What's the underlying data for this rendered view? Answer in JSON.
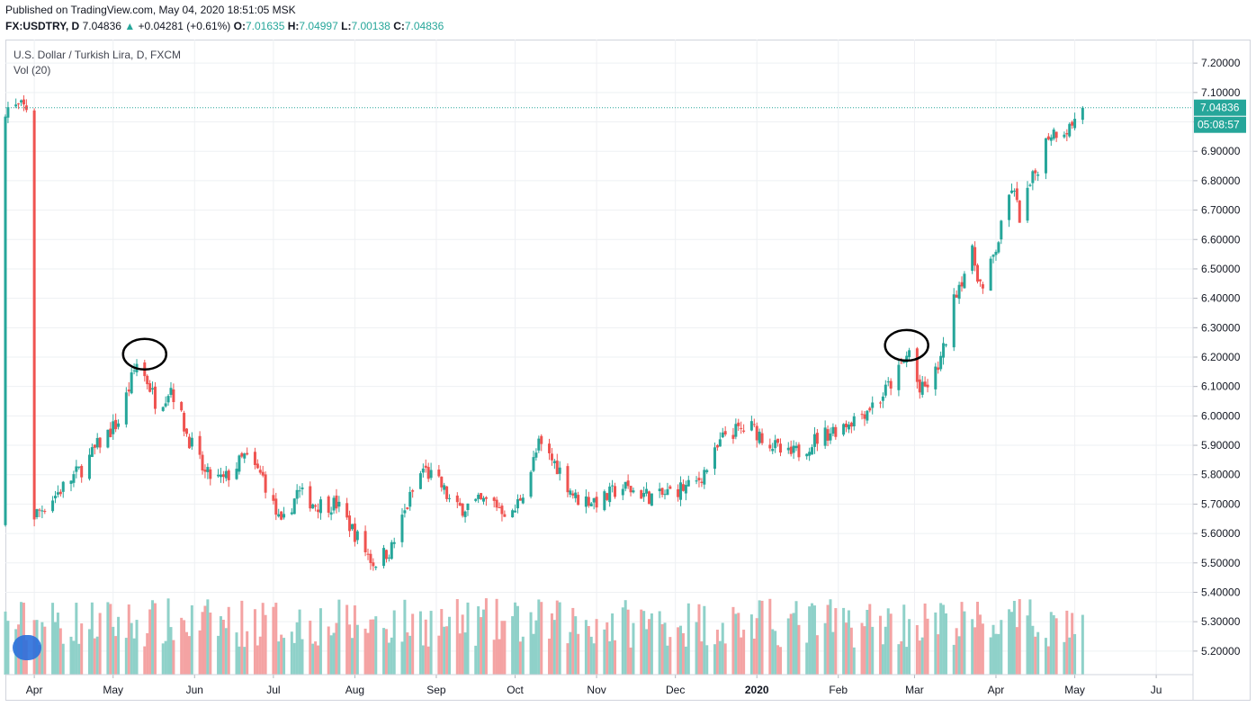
{
  "header": {
    "published": "Published on TradingView.com, May 04, 2020 18:51:05 MSK",
    "symbol": "FX:USDTRY, D",
    "last": "7.04836",
    "change": "+0.04281 (+0.61%)",
    "open_label": "O:",
    "open": "7.01635",
    "high_label": "H:",
    "high": "7.04997",
    "low_label": "L:",
    "low": "7.00138",
    "close_label": "C:",
    "close": "7.04836"
  },
  "legend": {
    "title": "U.S. Dollar / Turkish Lira, D, FXCM",
    "volume": "Vol (20)"
  },
  "price_badge": {
    "value": "7.04836",
    "countdown": "05:08:57"
  },
  "colors": {
    "up": "#26a69a",
    "down": "#ef5350",
    "up_vol": "#8fd1c9",
    "down_vol": "#f4a3a3",
    "grid": "#eef0f3"
  },
  "chart_data": {
    "type": "candlestick",
    "title": "U.S. Dollar / Turkish Lira, D, FXCM",
    "ylim": [
      5.12,
      7.28
    ],
    "y_ticks": [
      "7.20000",
      "7.10000",
      "7.00000",
      "6.90000",
      "6.80000",
      "6.70000",
      "6.60000",
      "6.50000",
      "6.40000",
      "6.30000",
      "6.20000",
      "6.10000",
      "6.00000",
      "5.90000",
      "5.80000",
      "5.70000",
      "5.60000",
      "5.50000",
      "5.40000",
      "5.30000",
      "5.20000"
    ],
    "x_ticks": [
      "Apr",
      "May",
      "Jun",
      "Jul",
      "Aug",
      "Sep",
      "Oct",
      "Nov",
      "Dec",
      "2020",
      "Feb",
      "Mar",
      "Apr",
      "May",
      "Ju"
    ],
    "close_path": [
      [
        "2019-04-01",
        5.66
      ],
      [
        "2019-04-10",
        5.74
      ],
      [
        "2019-04-20",
        5.83
      ],
      [
        "2019-04-26",
        5.91
      ],
      [
        "2019-05-03",
        5.98
      ],
      [
        "2019-05-10",
        6.18
      ],
      [
        "2019-05-14",
        6.12
      ],
      [
        "2019-05-18",
        6.03
      ],
      [
        "2019-05-23",
        6.1
      ],
      [
        "2019-05-29",
        5.94
      ],
      [
        "2019-06-05",
        5.8
      ],
      [
        "2019-06-12",
        5.78
      ],
      [
        "2019-06-20",
        5.86
      ],
      [
        "2019-06-27",
        5.79
      ],
      [
        "2019-07-04",
        5.62
      ],
      [
        "2019-07-10",
        5.74
      ],
      [
        "2019-07-17",
        5.7
      ],
      [
        "2019-07-25",
        5.7
      ],
      [
        "2019-08-01",
        5.6
      ],
      [
        "2019-08-08",
        5.5
      ],
      [
        "2019-08-15",
        5.55
      ],
      [
        "2019-08-22",
        5.72
      ],
      [
        "2019-08-27",
        5.82
      ],
      [
        "2019-09-03",
        5.76
      ],
      [
        "2019-09-08",
        5.68
      ],
      [
        "2019-09-15",
        5.7
      ],
      [
        "2019-09-22",
        5.71
      ],
      [
        "2019-09-30",
        5.66
      ],
      [
        "2019-10-06",
        5.79
      ],
      [
        "2019-10-10",
        5.9
      ],
      [
        "2019-10-17",
        5.83
      ],
      [
        "2019-10-24",
        5.72
      ],
      [
        "2019-11-03",
        5.71
      ],
      [
        "2019-11-10",
        5.76
      ],
      [
        "2019-11-17",
        5.74
      ],
      [
        "2019-11-24",
        5.72
      ],
      [
        "2019-12-01",
        5.75
      ],
      [
        "2019-12-08",
        5.76
      ],
      [
        "2019-12-15",
        5.85
      ],
      [
        "2019-12-20",
        5.94
      ],
      [
        "2019-12-30",
        5.96
      ],
      [
        "2020-01-06",
        5.91
      ],
      [
        "2020-01-12",
        5.86
      ],
      [
        "2020-01-17",
        5.88
      ],
      [
        "2020-01-25",
        5.93
      ],
      [
        "2020-02-03",
        5.97
      ],
      [
        "2020-02-10",
        6.01
      ],
      [
        "2020-02-17",
        6.06
      ],
      [
        "2020-02-24",
        6.15
      ],
      [
        "2020-02-28",
        6.22
      ],
      [
        "2020-03-03",
        6.08
      ],
      [
        "2020-03-08",
        6.12
      ],
      [
        "2020-03-12",
        6.22
      ],
      [
        "2020-03-17",
        6.43
      ],
      [
        "2020-03-23",
        6.55
      ],
      [
        "2020-03-27",
        6.42
      ],
      [
        "2020-04-02",
        6.6
      ],
      [
        "2020-04-07",
        6.78
      ],
      [
        "2020-04-10",
        6.68
      ],
      [
        "2020-04-14",
        6.78
      ],
      [
        "2020-04-17",
        6.85
      ],
      [
        "2020-04-21",
        6.96
      ],
      [
        "2020-04-24",
        6.97
      ],
      [
        "2020-04-29",
        6.98
      ],
      [
        "2020-05-04",
        7.048
      ]
    ],
    "last_price": 7.04836,
    "volume_label": "Vol (20)",
    "annotations": [
      {
        "type": "circle",
        "date": "2019-05-13",
        "price": 6.21
      },
      {
        "type": "circle",
        "date": "2020-02-27",
        "price": 6.24
      }
    ],
    "grid": true
  }
}
